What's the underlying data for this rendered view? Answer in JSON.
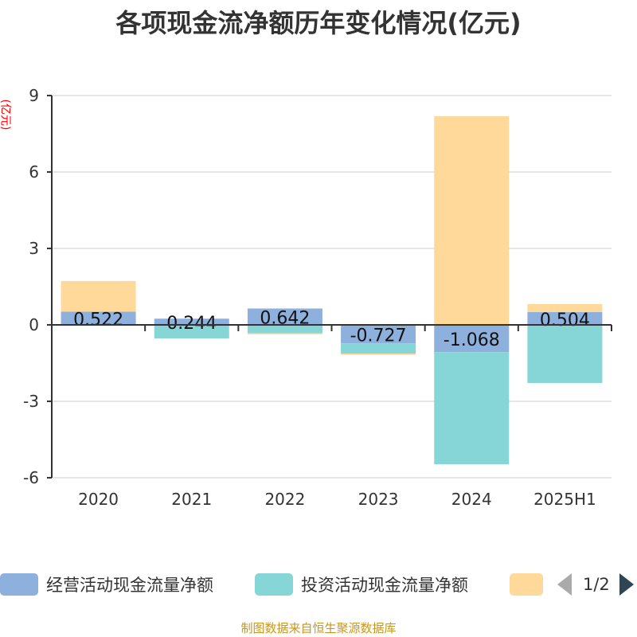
{
  "chart_data": {
    "type": "bar",
    "stacked": true,
    "title": "各项现金流净额历年变化情况(亿元)",
    "ylabel": "(亿元)",
    "categories": [
      "2020",
      "2021",
      "2022",
      "2023",
      "2024",
      "2025H1"
    ],
    "ylim": [
      -6,
      9
    ],
    "yticks": [
      -6,
      -3,
      0,
      3,
      6,
      9
    ],
    "grid": true,
    "series": [
      {
        "name": "经营活动现金流量净额",
        "color": "#8eb0dc",
        "values": [
          0.522,
          0.244,
          0.642,
          -0.727,
          -1.068,
          0.504
        ]
      },
      {
        "name": "投资活动现金流量净额",
        "color": "#86d5d7",
        "values": [
          -0.01,
          -0.53,
          -0.33,
          -0.4,
          -4.4,
          -2.28
        ]
      },
      {
        "name": "",
        "color": "#fed99a",
        "values": [
          1.2,
          0,
          -0.04,
          -0.05,
          8.19,
          0.31
        ]
      }
    ],
    "data_labels": [
      "0.522",
      "0.244",
      "0.642",
      "-0.727",
      "-1.068",
      "0.504"
    ],
    "legend_position": "bottom"
  },
  "legend": {
    "page": "1/2"
  },
  "source": "制图数据来自恒生聚源数据库"
}
